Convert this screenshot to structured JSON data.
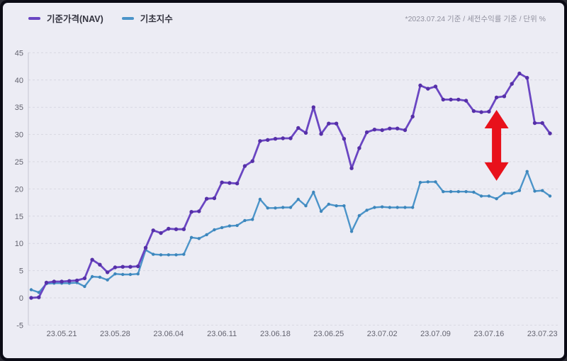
{
  "legend": {
    "nav_label": "기준가격(NAV)",
    "index_label": "기초지수"
  },
  "note": "*2023.07.24 기준 / 세전수익률 기준 / 단위 %",
  "colors": {
    "card_bg": "#ececf4",
    "frame": "#0b0b15",
    "grid": "#d7d7e1",
    "axis": "#c6c6d2",
    "tick_text": "#63636f",
    "nav": "#6a46c2",
    "nav_marker": "#5630a8",
    "index": "#4b94c9",
    "index_marker": "#3d86bb",
    "arrow_red": "#e8111b"
  },
  "chart_data": {
    "type": "line",
    "title": "",
    "unit": "%",
    "as_of_note": "*2023.07.24 기준 / 세전수익률 기준 / 단위 %",
    "ylim": [
      -5,
      45
    ],
    "yticks": [
      45,
      40,
      35,
      30,
      25,
      20,
      15,
      10,
      5,
      0,
      -5
    ],
    "grid": "dashed-horizontal",
    "legend_position": "top-left",
    "x": [
      "23.05.17",
      "23.05.18",
      "23.05.19",
      "23.05.20",
      "23.05.21",
      "23.05.22",
      "23.05.23",
      "23.05.24",
      "23.05.25",
      "23.05.26",
      "23.05.27",
      "23.05.28",
      "23.05.29",
      "23.05.30",
      "23.05.31",
      "23.06.01",
      "23.06.02",
      "23.06.03",
      "23.06.04",
      "23.06.05",
      "23.06.06",
      "23.06.07",
      "23.06.08",
      "23.06.09",
      "23.06.10",
      "23.06.11",
      "23.06.12",
      "23.06.13",
      "23.06.14",
      "23.06.15",
      "23.06.16",
      "23.06.17",
      "23.06.18",
      "23.06.19",
      "23.06.20",
      "23.06.21",
      "23.06.22",
      "23.06.23",
      "23.06.24",
      "23.06.25",
      "23.06.26",
      "23.06.27",
      "23.06.28",
      "23.06.29",
      "23.06.30",
      "23.07.01",
      "23.07.02",
      "23.07.03",
      "23.07.04",
      "23.07.05",
      "23.07.06",
      "23.07.07",
      "23.07.08",
      "23.07.09",
      "23.07.10",
      "23.07.11",
      "23.07.12",
      "23.07.13",
      "23.07.14",
      "23.07.15",
      "23.07.16",
      "23.07.17",
      "23.07.18",
      "23.07.19",
      "23.07.20",
      "23.07.21",
      "23.07.22",
      "23.07.23",
      "23.07.24"
    ],
    "xtick_indices": [
      4,
      11,
      18,
      25,
      32,
      39,
      46,
      53,
      60,
      67
    ],
    "xtick_labels": [
      "23.05.21",
      "23.05.28",
      "23.06.04",
      "23.06.11",
      "23.06.18",
      "23.06.25",
      "23.07.02",
      "23.07.09",
      "23.07.16",
      "23.07.23"
    ],
    "series": [
      {
        "name": "기준가격(NAV)",
        "color": "#6a46c2",
        "marker_color": "#5630a8",
        "values": [
          0.0,
          0.1,
          2.8,
          3.0,
          3.0,
          3.1,
          3.2,
          3.6,
          7.0,
          6.1,
          4.7,
          5.6,
          5.7,
          5.7,
          5.8,
          9.2,
          12.4,
          11.9,
          12.7,
          12.6,
          12.6,
          15.8,
          15.9,
          18.2,
          18.3,
          21.2,
          21.1,
          21.0,
          24.2,
          25.1,
          28.8,
          29.0,
          29.2,
          29.3,
          29.3,
          31.2,
          30.3,
          35.0,
          30.1,
          32.0,
          32.0,
          29.2,
          23.8,
          27.5,
          30.4,
          30.9,
          30.8,
          31.1,
          31.1,
          30.8,
          33.3,
          39.0,
          38.4,
          38.8,
          36.4,
          36.4,
          36.4,
          36.2,
          34.3,
          34.1,
          34.2,
          36.8,
          37.0,
          39.3,
          41.2,
          40.4,
          32.1,
          32.1,
          30.2
        ]
      },
      {
        "name": "기초지수",
        "color": "#4b94c9",
        "marker_color": "#3d86bb",
        "values": [
          1.5,
          1.0,
          2.6,
          2.7,
          2.7,
          2.7,
          2.8,
          2.1,
          3.9,
          3.8,
          3.3,
          4.4,
          4.3,
          4.3,
          4.4,
          8.8,
          8.0,
          7.9,
          7.9,
          7.9,
          8.0,
          11.1,
          10.9,
          11.6,
          12.5,
          12.9,
          13.2,
          13.3,
          14.2,
          14.4,
          18.1,
          16.5,
          16.5,
          16.6,
          16.6,
          18.1,
          16.9,
          19.4,
          15.9,
          17.2,
          16.9,
          16.9,
          12.2,
          15.1,
          16.1,
          16.6,
          16.7,
          16.6,
          16.6,
          16.6,
          16.6,
          21.2,
          21.3,
          21.3,
          19.5,
          19.5,
          19.5,
          19.5,
          19.4,
          18.7,
          18.7,
          18.2,
          19.2,
          19.2,
          19.7,
          23.2,
          19.6,
          19.7,
          18.7
        ]
      }
    ],
    "annotation": {
      "type": "double-headed-vertical-arrow",
      "color": "#e8111b",
      "x_index": 61,
      "y_top_value": 34.5,
      "y_bottom_value": 21.5,
      "meaning": "NAV vs index gap highlight"
    }
  }
}
